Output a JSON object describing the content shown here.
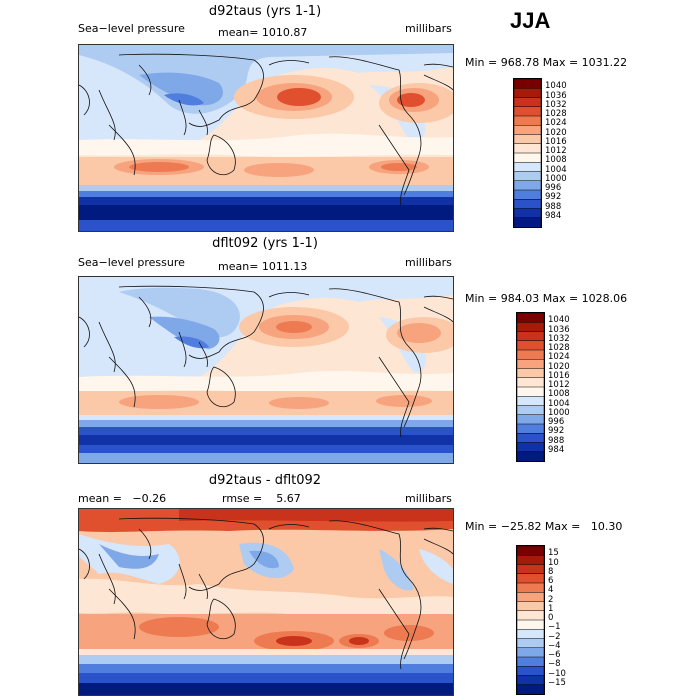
{
  "season": "JJA",
  "panels": [
    {
      "title": "d92taus (yrs 1-1)",
      "left_label": "Sea−level pressure",
      "center_label": "mean= 1010.87",
      "units": "millibars",
      "minmax": "Min = 968.78 Max = 1031.22",
      "legend": {
        "labels": [
          "1040",
          "1036",
          "1032",
          "1028",
          "1024",
          "1020",
          "1016",
          "1012",
          "1008",
          "1004",
          "1000",
          "996",
          "992",
          "988",
          "984"
        ],
        "colors": [
          "#7a0000",
          "#a51b0a",
          "#c9321b",
          "#e0502e",
          "#ee7a52",
          "#f6a37e",
          "#fbc8a8",
          "#fde6d3",
          "#fff7ee",
          "#d6e6fb",
          "#aecbf2",
          "#7fa8e8",
          "#4f7ede",
          "#2a53c9",
          "#1131a6",
          "#001a80"
        ]
      }
    },
    {
      "title": "dflt092 (yrs 1-1)",
      "left_label": "Sea−level pressure",
      "center_label": "mean= 1011.13",
      "units": "millibars",
      "minmax": "Min = 984.03 Max = 1028.06",
      "legend": {
        "labels": [
          "1040",
          "1036",
          "1032",
          "1028",
          "1024",
          "1020",
          "1016",
          "1012",
          "1008",
          "1004",
          "1000",
          "996",
          "992",
          "988",
          "984"
        ],
        "colors": [
          "#7a0000",
          "#a51b0a",
          "#c9321b",
          "#e0502e",
          "#ee7a52",
          "#f6a37e",
          "#fbc8a8",
          "#fde6d3",
          "#fff7ee",
          "#d6e6fb",
          "#aecbf2",
          "#7fa8e8",
          "#4f7ede",
          "#2a53c9",
          "#1131a6",
          "#001a80"
        ]
      }
    },
    {
      "title": "d92taus - dflt092",
      "left_label": "mean =   −0.26",
      "center_label": "rmse =    5.67",
      "units": "millibars",
      "minmax": "Min = −25.82 Max =   10.30",
      "legend": {
        "labels": [
          "15",
          "10",
          "8",
          "6",
          "4",
          "2",
          "1",
          "0",
          "−1",
          "−2",
          "−4",
          "−6",
          "−8",
          "−10",
          "−15"
        ],
        "colors": [
          "#7a0000",
          "#a51b0a",
          "#c9321b",
          "#e0502e",
          "#ee7a52",
          "#f6a37e",
          "#fbc8a8",
          "#fde6d3",
          "#fff7ee",
          "#d6e6fb",
          "#aecbf2",
          "#7fa8e8",
          "#4f7ede",
          "#2a53c9",
          "#1131a6",
          "#001a80"
        ]
      }
    }
  ]
}
